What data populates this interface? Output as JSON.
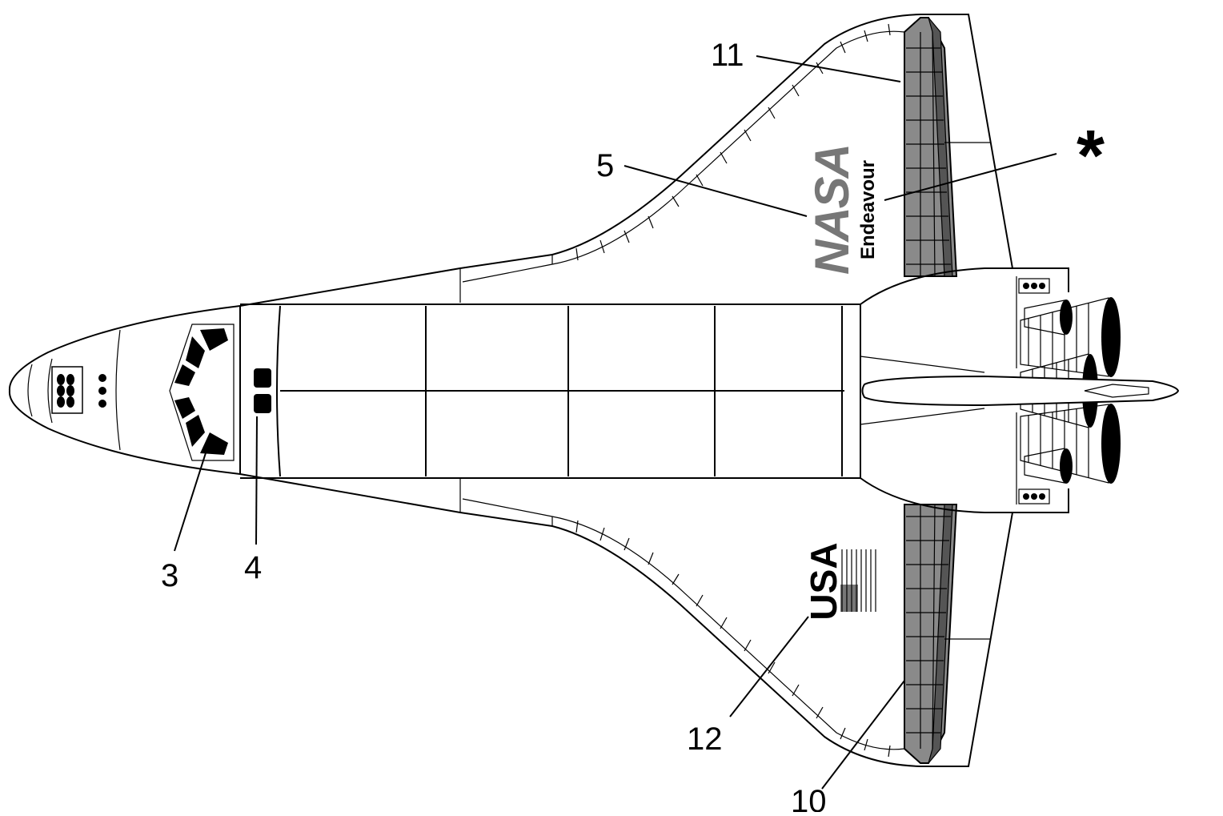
{
  "callouts": {
    "c3": "3",
    "c4": "4",
    "c5": "5",
    "c10": "10",
    "c11": "11",
    "c12": "12",
    "star": "*"
  },
  "markings": {
    "nasa_logo": "NASA",
    "orbiter_name": "Endeavour",
    "country": "USA"
  },
  "colors": {
    "outline": "#000000",
    "elevon_fill": "#8a8a8a",
    "elevon_dark": "#555555",
    "logo_grey": "#777777",
    "background": "#ffffff"
  }
}
